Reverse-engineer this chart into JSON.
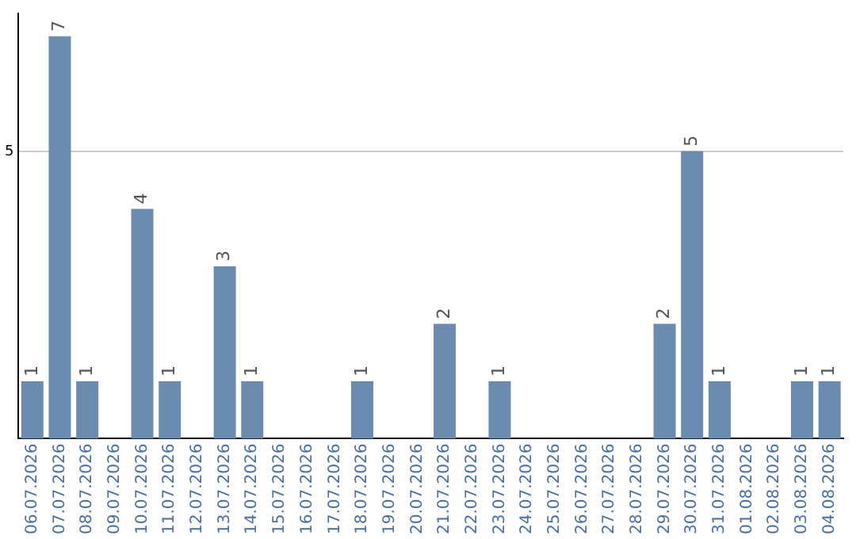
{
  "chart_data": {
    "type": "bar",
    "categories": [
      "06.07.2026",
      "07.07.2026",
      "08.07.2026",
      "09.07.2026",
      "10.07.2026",
      "11.07.2026",
      "12.07.2026",
      "13.07.2026",
      "14.07.2026",
      "15.07.2026",
      "16.07.2026",
      "17.07.2026",
      "18.07.2026",
      "19.07.2026",
      "20.07.2026",
      "21.07.2026",
      "22.07.2026",
      "23.07.2026",
      "24.07.2026",
      "25.07.2026",
      "26.07.2026",
      "27.07.2026",
      "28.07.2026",
      "29.07.2026",
      "30.07.2026",
      "31.07.2026",
      "01.08.2026",
      "02.08.2026",
      "03.08.2026",
      "04.08.2026"
    ],
    "values": [
      1,
      7,
      1,
      0,
      4,
      1,
      0,
      3,
      1,
      0,
      0,
      0,
      1,
      0,
      0,
      2,
      0,
      1,
      0,
      0,
      0,
      0,
      0,
      2,
      5,
      1,
      0,
      0,
      1,
      1
    ],
    "value_labels": [
      "1",
      "7",
      "1",
      null,
      "4",
      "1",
      null,
      "3",
      "1",
      null,
      null,
      null,
      "1",
      null,
      null,
      "2",
      null,
      "1",
      null,
      null,
      null,
      null,
      null,
      "2",
      "5",
      "1",
      null,
      null,
      "1",
      "1"
    ],
    "color": "#6b8cae",
    "ylim": [
      0,
      7.4
    ],
    "yticks": [
      5
    ],
    "grid": "y",
    "legend": false
  }
}
